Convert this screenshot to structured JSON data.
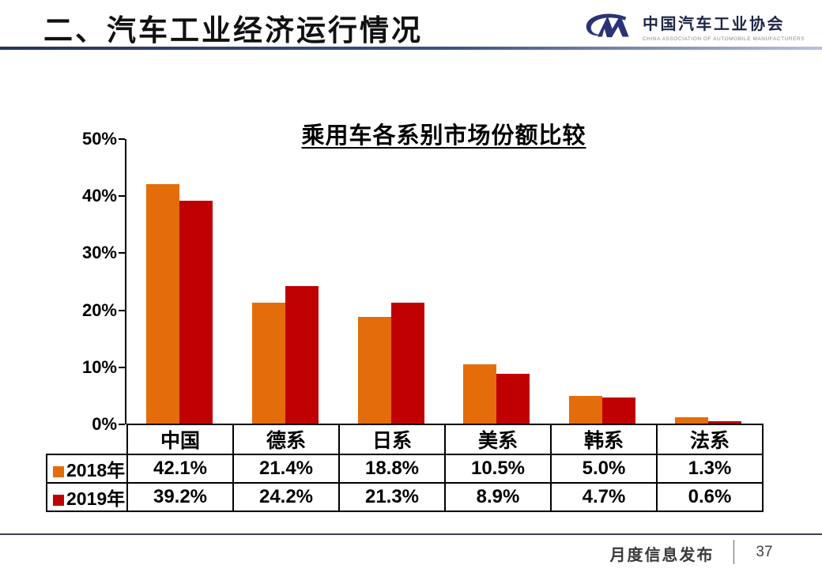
{
  "header": {
    "title": "二、汽车工业经济运行情况",
    "logo": {
      "org_cn": "中国汽车工业协会",
      "org_en": "CHINA ASSOCIATION OF AUTOMOBILE MANUFACTURERS",
      "mark_color": "#2B3377"
    }
  },
  "chart_data": {
    "type": "bar",
    "title": "乘用车各系别市场份额比较",
    "categories": [
      "中国",
      "德系",
      "日系",
      "美系",
      "韩系",
      "法系"
    ],
    "series": [
      {
        "name": "2018年",
        "color": "#E46C0A",
        "values": [
          42.1,
          21.4,
          18.8,
          10.5,
          5.0,
          1.3
        ]
      },
      {
        "name": "2019年",
        "color": "#C00000",
        "values": [
          39.2,
          24.2,
          21.3,
          8.9,
          4.7,
          0.6
        ]
      }
    ],
    "ylabel": "",
    "xlabel": "",
    "ylim": [
      0,
      50
    ],
    "ytick_labels": [
      "50%",
      "40%",
      "30%",
      "20%",
      "10%",
      "0%"
    ],
    "value_suffix": "%",
    "grid": false,
    "legend_position": "data-table-left"
  },
  "table": {
    "formatted": [
      [
        "42.1%",
        "21.4%",
        "18.8%",
        "10.5%",
        "5.0%",
        "1.3%"
      ],
      [
        "39.2%",
        "24.2%",
        "21.3%",
        "8.9%",
        "4.7%",
        "0.6%"
      ]
    ]
  },
  "footer": {
    "label": "月度信息发布",
    "page_number": "37"
  }
}
